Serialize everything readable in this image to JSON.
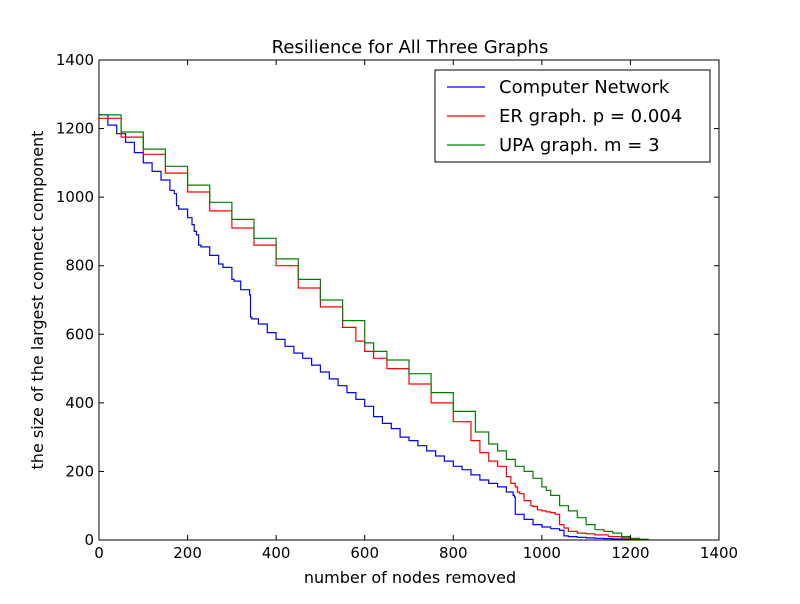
{
  "chart_data": {
    "type": "line",
    "title": "Resilience for All Three Graphs",
    "xlabel": "number of nodes removed",
    "ylabel": "the size of the largest connect component",
    "xlim": [
      0,
      1400
    ],
    "ylim": [
      0,
      1400
    ],
    "xticks": [
      0,
      200,
      400,
      600,
      800,
      1000,
      1200,
      1400
    ],
    "yticks": [
      0,
      200,
      400,
      600,
      800,
      1000,
      1200,
      1400
    ],
    "grid": false,
    "legend_position": "top-right",
    "series": [
      {
        "name": "Computer Network",
        "color": "#0000ff",
        "x": [
          0,
          20,
          40,
          60,
          80,
          100,
          120,
          140,
          160,
          170,
          175,
          180,
          200,
          210,
          215,
          220,
          225,
          230,
          250,
          270,
          280,
          300,
          305,
          320,
          340,
          342,
          345,
          360,
          380,
          400,
          420,
          440,
          460,
          480,
          500,
          520,
          540,
          560,
          580,
          600,
          620,
          640,
          660,
          680,
          700,
          720,
          740,
          760,
          780,
          800,
          820,
          840,
          860,
          880,
          900,
          920,
          935,
          938,
          940,
          960,
          980,
          1000,
          1020,
          1040,
          1050,
          1060,
          1080,
          1100,
          1120,
          1140,
          1160,
          1180,
          1200,
          1220,
          1240
        ],
        "values": [
          1240,
          1210,
          1185,
          1160,
          1130,
          1100,
          1075,
          1050,
          1020,
          1010,
          975,
          965,
          940,
          920,
          900,
          890,
          860,
          855,
          830,
          805,
          795,
          760,
          755,
          730,
          715,
          650,
          645,
          630,
          605,
          585,
          565,
          545,
          530,
          510,
          490,
          470,
          450,
          430,
          410,
          390,
          360,
          340,
          325,
          300,
          290,
          275,
          260,
          245,
          230,
          215,
          205,
          190,
          175,
          165,
          155,
          140,
          130,
          125,
          75,
          60,
          45,
          38,
          33,
          28,
          12,
          10,
          8,
          6,
          5,
          4,
          3,
          2,
          1,
          1,
          0
        ]
      },
      {
        "name": "ER graph. p = 0.004",
        "color": "#ff0000",
        "x": [
          0,
          50,
          100,
          150,
          200,
          250,
          300,
          350,
          400,
          450,
          500,
          550,
          580,
          600,
          620,
          650,
          700,
          750,
          800,
          840,
          860,
          880,
          900,
          920,
          930,
          940,
          945,
          950,
          960,
          975,
          980,
          990,
          1000,
          1010,
          1020,
          1030,
          1040,
          1050,
          1060,
          1080,
          1100,
          1120,
          1150,
          1180,
          1200,
          1220,
          1240
        ],
        "values": [
          1230,
          1175,
          1125,
          1070,
          1015,
          960,
          910,
          860,
          800,
          735,
          680,
          620,
          580,
          550,
          530,
          500,
          455,
          400,
          345,
          290,
          255,
          230,
          215,
          185,
          165,
          155,
          140,
          135,
          115,
          100,
          98,
          88,
          85,
          82,
          80,
          75,
          45,
          35,
          25,
          20,
          18,
          15,
          10,
          6,
          4,
          2,
          0
        ]
      },
      {
        "name": "UPA graph. m = 3",
        "color": "#008000",
        "x": [
          0,
          50,
          100,
          150,
          200,
          250,
          300,
          350,
          400,
          450,
          500,
          550,
          600,
          620,
          650,
          700,
          750,
          800,
          850,
          880,
          900,
          920,
          940,
          960,
          980,
          1000,
          1010,
          1020,
          1040,
          1060,
          1080,
          1100,
          1120,
          1140,
          1160,
          1180,
          1200,
          1220,
          1240
        ],
        "values": [
          1240,
          1190,
          1140,
          1090,
          1035,
          985,
          935,
          880,
          820,
          760,
          700,
          640,
          575,
          550,
          525,
          485,
          430,
          375,
          315,
          280,
          260,
          235,
          215,
          200,
          180,
          155,
          145,
          130,
          100,
          85,
          65,
          45,
          30,
          25,
          20,
          10,
          5,
          2,
          0
        ]
      }
    ]
  }
}
